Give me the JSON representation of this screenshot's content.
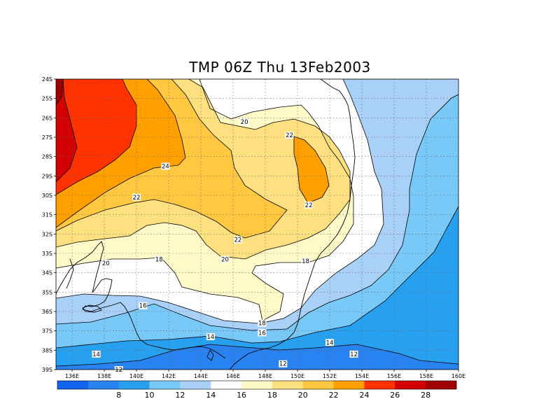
{
  "title": "TMP 06Z Thu 13Feb2003",
  "map": {
    "lat_labels": [
      "24S",
      "25S",
      "26S",
      "27S",
      "28S",
      "29S",
      "30S",
      "31S",
      "32S",
      "33S",
      "34S",
      "35S",
      "36S",
      "37S",
      "38S",
      "39S"
    ],
    "lon_labels": [
      "136E",
      "138E",
      "140E",
      "142E",
      "144E",
      "146E",
      "148E",
      "150E",
      "152E",
      "154E",
      "156E",
      "158E",
      "160E"
    ],
    "lon_range": [
      135,
      160
    ],
    "lat_range": [
      -39,
      -24
    ],
    "grid": "dotted",
    "contour_labels": [
      {
        "text": "24",
        "lon": 141.8,
        "lat": -28.5
      },
      {
        "text": "20",
        "lon": 146.7,
        "lat": -26.2
      },
      {
        "text": "22",
        "lon": 149.5,
        "lat": -26.9
      },
      {
        "text": "22",
        "lon": 150.7,
        "lat": -30.5
      },
      {
        "text": "22",
        "lon": 140.0,
        "lat": -30.1
      },
      {
        "text": "22",
        "lon": 146.3,
        "lat": -32.3
      },
      {
        "text": "20",
        "lon": 138.1,
        "lat": -33.5
      },
      {
        "text": "18",
        "lon": 141.4,
        "lat": -33.3
      },
      {
        "text": "20",
        "lon": 145.5,
        "lat": -33.3
      },
      {
        "text": "18",
        "lon": 150.5,
        "lat": -33.4
      },
      {
        "text": "16",
        "lon": 140.4,
        "lat": -35.7
      },
      {
        "text": "18",
        "lon": 147.8,
        "lat": -36.6
      },
      {
        "text": "16",
        "lon": 147.8,
        "lat": -37.1
      },
      {
        "text": "14",
        "lon": 144.6,
        "lat": -37.3
      },
      {
        "text": "14",
        "lon": 152.0,
        "lat": -37.6
      },
      {
        "text": "14",
        "lon": 137.5,
        "lat": -38.2
      },
      {
        "text": "12",
        "lon": 153.5,
        "lat": -38.2
      },
      {
        "text": "12",
        "lon": 149.1,
        "lat": -38.7
      },
      {
        "text": "12",
        "lon": 138.9,
        "lat": -39.0
      }
    ]
  },
  "colorbar": {
    "labels": [
      "8",
      "10",
      "12",
      "14",
      "16",
      "18",
      "20",
      "22",
      "24",
      "26",
      "28"
    ],
    "colors": [
      "#1464f0",
      "#2882f0",
      "#28a0f0",
      "#78c8f8",
      "#a8d0f8",
      "#ffffff",
      "#fffac8",
      "#ffe080",
      "#ffc840",
      "#ffa000",
      "#ff3200",
      "#d20000",
      "#a00000"
    ]
  },
  "fill_colors": {
    "c12": "#2882f0",
    "c14": "#28a0f0",
    "c16": "#78c8f8",
    "c18": "#a8d0f8",
    "c20": "#ffffff",
    "c22": "#fffac8",
    "c24": "#ffe080",
    "c26": "#ffc840",
    "c28": "#ffa000",
    "c30": "#ff3200",
    "c32": "#d20000",
    "c34": "#a00000"
  }
}
